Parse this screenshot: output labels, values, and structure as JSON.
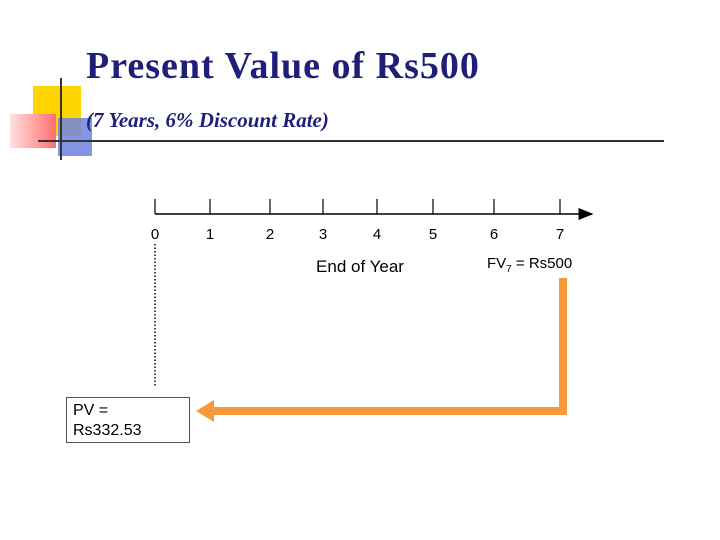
{
  "slide": {
    "title": "Present Value of Rs500",
    "subtitle": "(7 Years, 6% Discount Rate)"
  },
  "timeline": {
    "ticks": [
      "0",
      "1",
      "2",
      "3",
      "4",
      "5",
      "6",
      "7"
    ],
    "axis_label": "End of Year"
  },
  "future_value": {
    "prefix": "FV",
    "subscript": "7",
    "suffix": " = Rs500"
  },
  "present_value": {
    "line1": "PV =",
    "line2": "Rs332.53"
  },
  "colors": {
    "title": "#1f1f7a",
    "arrow": "#f79a3c",
    "deco_yellow": "#ffd500",
    "deco_red": "#ff6f6f",
    "deco_blue": "#5a6fd8"
  }
}
